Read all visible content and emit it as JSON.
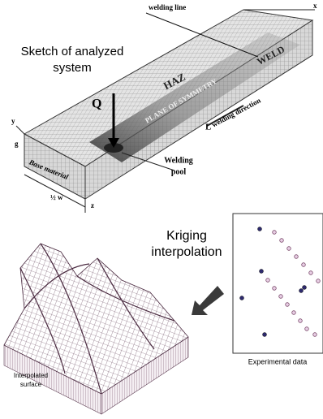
{
  "sketch": {
    "title_lines": [
      "Sketch of analyzed",
      "system"
    ],
    "welding_line": "welding line",
    "x_axis": "x",
    "y_axis": "y",
    "z_axis": "z",
    "g": "g",
    "haz": "HAZ",
    "weld": "WELD",
    "plane": "PLANE OF SYMMETRY",
    "q": "Q",
    "l": "L",
    "welding_direction": "welding direction",
    "base_material": "Base material",
    "welding_pool_lines": [
      "Welding",
      "pool"
    ],
    "half_w": "½ w"
  },
  "kriging": {
    "title_lines": [
      "Kriging",
      "interpolation"
    ]
  },
  "experimental": {
    "caption": "Experimental data"
  },
  "surface": {
    "caption_lines": [
      "Interpolated",
      "surface"
    ]
  }
}
